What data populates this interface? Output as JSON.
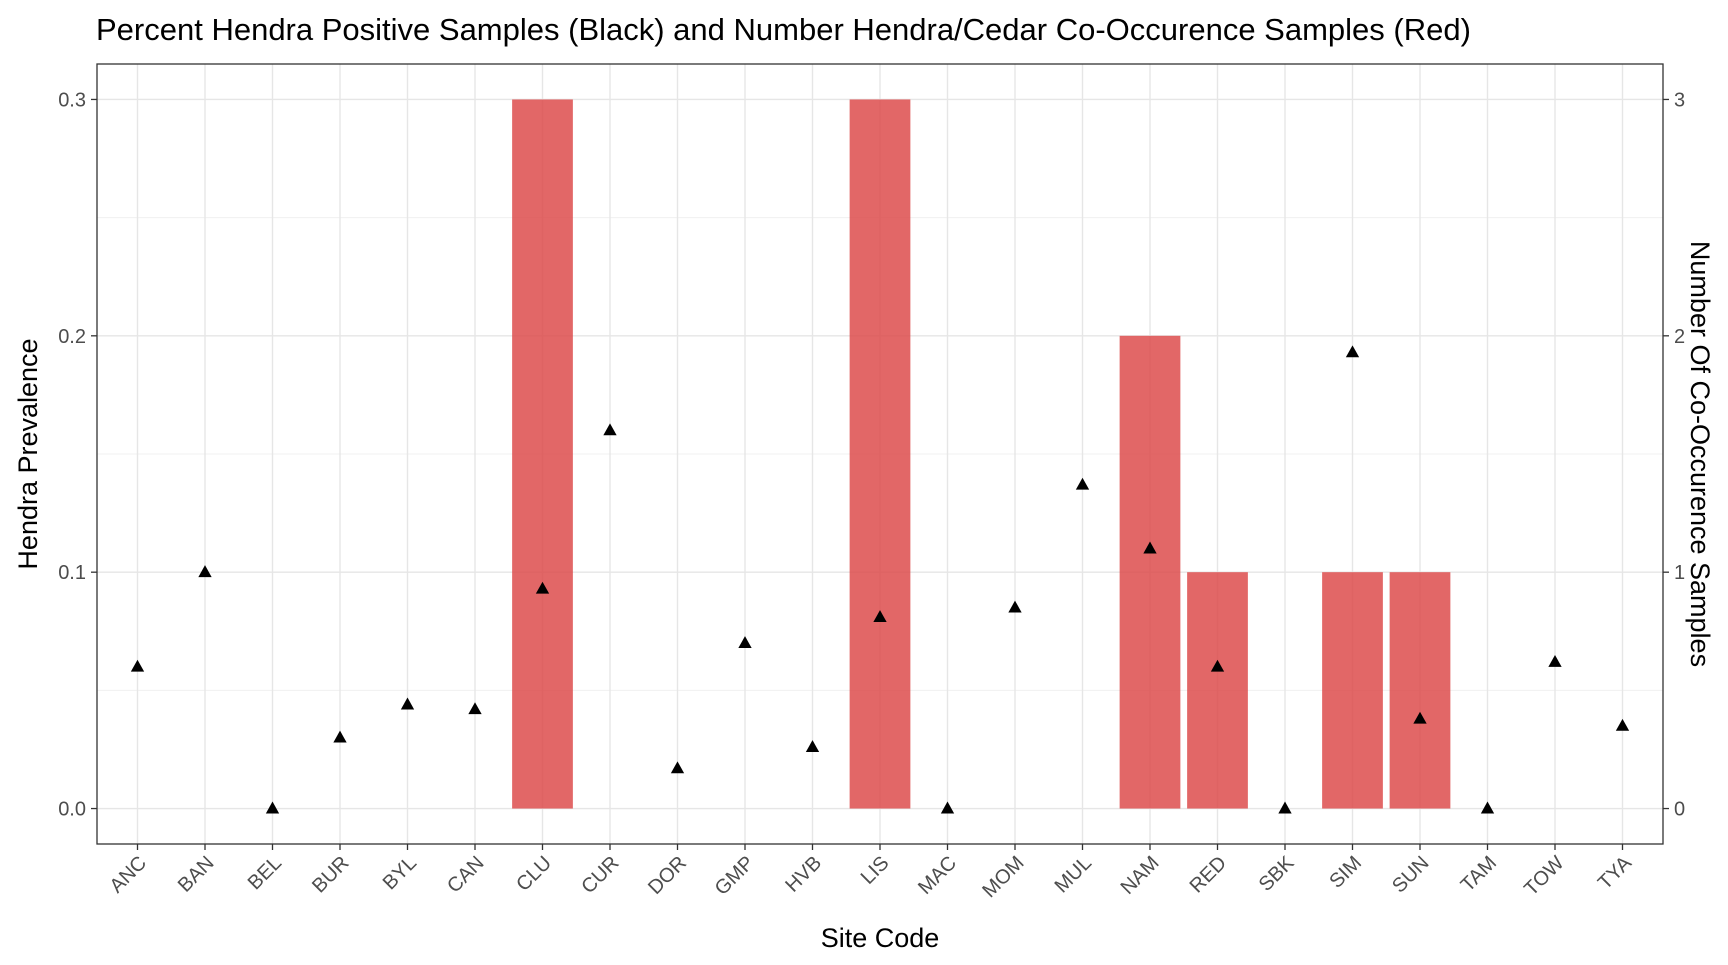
{
  "chart_data": {
    "type": "bar",
    "title": "Percent Hendra Positive Samples (Black) and Number Hendra/Cedar Co-Occurence Samples (Red)",
    "xlabel": "Site Code",
    "ylabel": "Hendra Prevalence",
    "ylabel_right": "Number Of Co-Occurence Samples",
    "categories": [
      "ANC",
      "BAN",
      "BEL",
      "BUR",
      "BYL",
      "CAN",
      "CLU",
      "CUR",
      "DOR",
      "GMP",
      "HVB",
      "LIS",
      "MAC",
      "MOM",
      "MUL",
      "NAM",
      "RED",
      "SBK",
      "SIM",
      "SUN",
      "TAM",
      "TOW",
      "TYA"
    ],
    "ylim": [
      -0.015,
      0.315
    ],
    "yticks": [
      0.0,
      0.1,
      0.2,
      0.3
    ],
    "ytick_labels": [
      "0.0",
      "0.1",
      "0.2",
      "0.3"
    ],
    "y2lim": [
      -0.15,
      3.15
    ],
    "y2ticks": [
      0,
      1,
      2,
      3
    ],
    "y2tick_labels": [
      "0",
      "1",
      "2",
      "3"
    ],
    "grid": true,
    "series": [
      {
        "axis": "right",
        "kind": "bar",
        "color": "#DC4646",
        "values": [
          0,
          0,
          0,
          0,
          0,
          0,
          3,
          0,
          0,
          0,
          0,
          3,
          0,
          0,
          0,
          2,
          1,
          0,
          1,
          1,
          0,
          0,
          0
        ]
      },
      {
        "axis": "left",
        "kind": "scatter",
        "marker": "triangle",
        "color": "#000000",
        "values": [
          0.06,
          0.1,
          0.0,
          0.03,
          0.044,
          0.042,
          0.093,
          0.16,
          0.017,
          0.07,
          0.026,
          0.081,
          0.0,
          0.085,
          0.137,
          0.11,
          0.06,
          0.0,
          0.193,
          0.038,
          0.0,
          0.062,
          0.035
        ]
      }
    ]
  }
}
